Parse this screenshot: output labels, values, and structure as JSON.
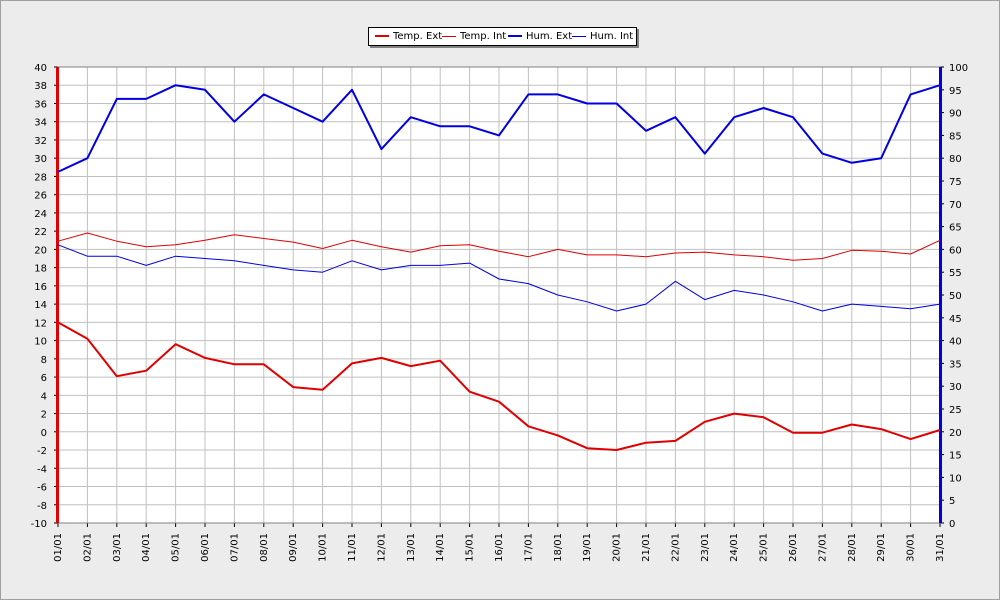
{
  "chart_data": {
    "type": "line",
    "categories": [
      "01/01",
      "02/01",
      "03/01",
      "04/01",
      "05/01",
      "06/01",
      "07/01",
      "08/01",
      "09/01",
      "10/01",
      "11/01",
      "12/01",
      "13/01",
      "14/01",
      "15/01",
      "16/01",
      "17/01",
      "18/01",
      "19/01",
      "20/01",
      "21/01",
      "22/01",
      "23/01",
      "24/01",
      "25/01",
      "26/01",
      "27/01",
      "28/01",
      "29/01",
      "30/01",
      "31/01"
    ],
    "y_left": {
      "ylim": [
        -10,
        40
      ],
      "step": 2
    },
    "y_right": {
      "ylim": [
        0,
        100
      ],
      "step": 5
    },
    "grid": true,
    "legend_position": "top-center",
    "series": [
      {
        "name": "Temp. Ext",
        "axis": "left",
        "color": "#e00000",
        "width": 2,
        "values": [
          12.0,
          10.2,
          6.1,
          6.7,
          9.6,
          8.1,
          7.4,
          7.4,
          4.9,
          4.6,
          7.5,
          8.1,
          7.2,
          7.8,
          4.4,
          3.3,
          0.6,
          -0.4,
          -1.8,
          -2.0,
          -1.2,
          -1.0,
          1.1,
          2.0,
          1.6,
          -0.1,
          -0.1,
          0.8,
          0.3,
          -0.8,
          0.2
        ]
      },
      {
        "name": "Temp. Int",
        "axis": "left",
        "color": "#e00000",
        "width": 1,
        "values": [
          20.9,
          21.8,
          20.9,
          20.3,
          20.5,
          21.0,
          21.6,
          21.2,
          20.8,
          20.1,
          21.0,
          20.3,
          19.7,
          20.4,
          20.5,
          19.8,
          19.2,
          20.0,
          19.4,
          19.4,
          19.2,
          19.6,
          19.7,
          19.4,
          19.2,
          18.8,
          19.0,
          19.9,
          19.8,
          19.5,
          21.0
        ]
      },
      {
        "name": "Hum. Ext",
        "axis": "right",
        "color": "#0000e0",
        "width": 2,
        "values": [
          77,
          80,
          93,
          93,
          96,
          95,
          88,
          94,
          91,
          88,
          95,
          82,
          89,
          87,
          87,
          85,
          94,
          94,
          92,
          92,
          86,
          89,
          81,
          89,
          91,
          89,
          81,
          79,
          80,
          94,
          96
        ]
      },
      {
        "name": "Hum. Int",
        "axis": "right",
        "color": "#0000e0",
        "width": 1,
        "values": [
          61,
          58.5,
          58.5,
          56.5,
          58.5,
          58,
          57.5,
          56.5,
          55.5,
          55,
          57.5,
          55.5,
          56.5,
          56.5,
          57,
          53.5,
          52.5,
          50,
          48.5,
          46.5,
          48,
          53,
          49,
          51,
          50,
          48.5,
          46.5,
          48,
          47.5,
          47,
          48
        ]
      }
    ]
  }
}
